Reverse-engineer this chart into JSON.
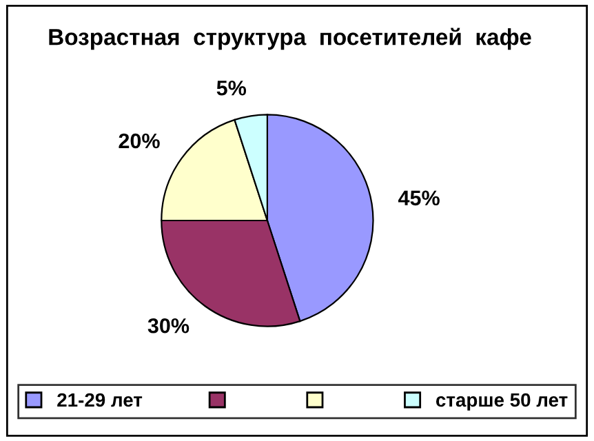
{
  "chart_data": {
    "type": "pie",
    "title": "Возрастная  структура  посетителей  кафе",
    "categories": [
      "21-29 лет",
      null,
      null,
      "старше 50 лет"
    ],
    "values": [
      45,
      30,
      20,
      5
    ],
    "colors": [
      "#9999ff",
      "#993366",
      "#ffffcc",
      "#ccffff"
    ],
    "value_labels": [
      "45%",
      "30%",
      "20%",
      "5%"
    ],
    "legend": "bottom"
  }
}
